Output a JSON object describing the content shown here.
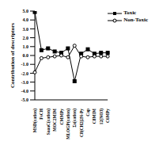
{
  "chart_data": {
    "type": "line",
    "y_label": "Contribution of descriptors",
    "categories": [
      "MSD(cation)",
      "FsCH",
      "SaaaC(cation)",
      "MOC2MIM",
      "CMMPy",
      "MLOGP(cation)",
      "Σs(cation)",
      "C8(CH2)2N-Py",
      "Cap",
      "C8MIM",
      "12(NO3)",
      "C6MPy"
    ],
    "series": [
      {
        "name": "Toxic",
        "color": "#000000",
        "marker": "square",
        "values": [
          4.9,
          0.6,
          0.8,
          0.45,
          0.3,
          0.8,
          -2.9,
          0.2,
          0.7,
          0.2,
          0.3,
          0.3
        ]
      },
      {
        "name": "Non-Toxic",
        "color": "#000000",
        "marker": "circle",
        "values": [
          -1.9,
          -0.3,
          -0.2,
          -0.1,
          0.0,
          -0.2,
          1.1,
          -0.1,
          -0.2,
          -0.1,
          -0.1,
          -0.1
        ]
      }
    ],
    "ylim": [
      -5,
      5
    ],
    "yticks": [
      {
        "value": -5,
        "label": "-5.0"
      },
      {
        "value": -4,
        "label": "-4.0"
      },
      {
        "value": -3,
        "label": "-3.0"
      },
      {
        "value": -2,
        "label": "-2.0"
      },
      {
        "value": -1,
        "label": "-1.0"
      },
      {
        "value": 0,
        "label": "0.0"
      },
      {
        "value": 1,
        "label": "1.0"
      },
      {
        "value": 2,
        "label": "2.0"
      },
      {
        "value": 3,
        "label": "3.0"
      },
      {
        "value": 4,
        "label": "4.0"
      },
      {
        "value": 5,
        "label": "5.0"
      }
    ],
    "legend": "top-right",
    "grid": false
  }
}
